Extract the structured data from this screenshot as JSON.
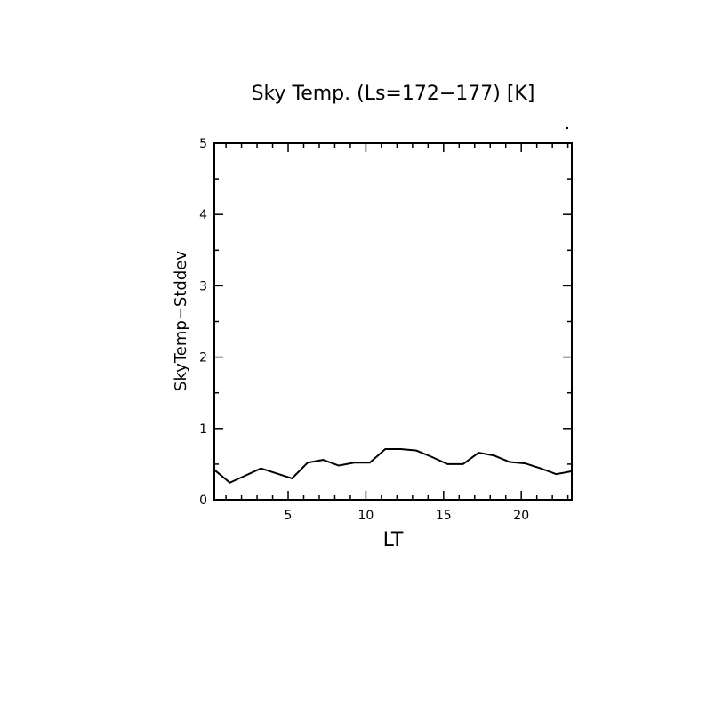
{
  "chart_data": {
    "type": "line",
    "title": "Sky Temp. (Ls=172−177) [K]",
    "xlabel": "LT",
    "ylabel": "SkyTemp−Stddev",
    "xlim": [
      0.25,
      23.25
    ],
    "ylim": [
      0,
      5
    ],
    "xticks": [
      5,
      10,
      15,
      20
    ],
    "xtick_labels": [
      "5",
      "10",
      "15",
      "20"
    ],
    "yticks": [
      0,
      1,
      2,
      3,
      4,
      5
    ],
    "ytick_labels": [
      "0",
      "1",
      "2",
      "3",
      "4",
      "5"
    ],
    "grid": false,
    "x": [
      0.25,
      1.25,
      2.25,
      3.25,
      4.25,
      5.25,
      6.25,
      7.25,
      8.25,
      9.25,
      10.25,
      11.25,
      12.25,
      13.25,
      14.25,
      15.25,
      16.25,
      17.25,
      18.25,
      19.25,
      20.25,
      21.25,
      22.25,
      23.25
    ],
    "y": [
      0.42,
      0.24,
      0.34,
      0.44,
      0.37,
      0.3,
      0.52,
      0.56,
      0.48,
      0.52,
      0.52,
      0.71,
      0.71,
      0.69,
      0.6,
      0.5,
      0.5,
      0.66,
      0.62,
      0.53,
      0.51,
      0.44,
      0.36,
      0.4
    ],
    "color": "#000000"
  }
}
